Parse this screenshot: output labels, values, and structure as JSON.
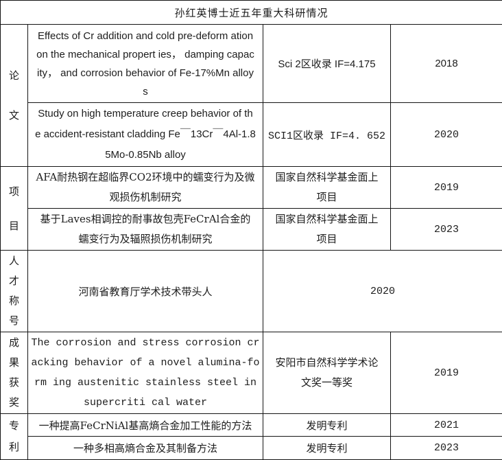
{
  "table": {
    "title": "孙红英博士近五年重大科研情况",
    "categories": {
      "papers": "论\n文",
      "projects": "项\n目",
      "talent": "人\n才\n称\n号",
      "awards": "成\n果\n获\n奖",
      "patents": "专\n利"
    },
    "rows": {
      "paper1": {
        "content": "Effects of Cr addition and cold pre-deform ation\non the mechanical propert ies， damping capac\nity， and corrosion behavior of Fe-17%Mn alloy\ns",
        "info": "Sci 2区收录 IF=4.175",
        "year": "2018"
      },
      "paper2": {
        "content": "Study on high temperature creep behavior of th\ne accident-resistant cladding Fe￣13Cr￣4Al-1.8\n5Mo-0.85Nb alloy",
        "info": "SCI1区收录 IF=4. 652",
        "year": "2020"
      },
      "project1": {
        "content": "AFA耐热钢在超临界CO2环境中的蠕变行为及微\n观损伤机制研究",
        "info": "国家自然科学基金面上\n项目",
        "year": "2019"
      },
      "project2": {
        "content": "基于Laves相调控的耐事故包壳FeCrAl合金的\n蠕变行为及辐照损伤机制研究",
        "info": "国家自然科学基金面上\n项目",
        "year": "2023"
      },
      "talent1": {
        "content": "河南省教育厅学术技术带头人",
        "year": "2020"
      },
      "award1": {
        "content": "The corrosion and stress corrosion cr\nacking behavior of a novel alumina-fo\nrm ing austenitic stainless steel in\nsupercriti cal water",
        "info": "安阳市自然科学学术论\n文奖一等奖",
        "year": "2019"
      },
      "patent1": {
        "content": "一种提高FeCrNiAl基高熵合金加工性能的方法",
        "info": "发明专利",
        "year": "2021"
      },
      "patent2": {
        "content": "一种多相高熵合金及其制备方法",
        "info": "发明专利",
        "year": "2023"
      }
    }
  }
}
